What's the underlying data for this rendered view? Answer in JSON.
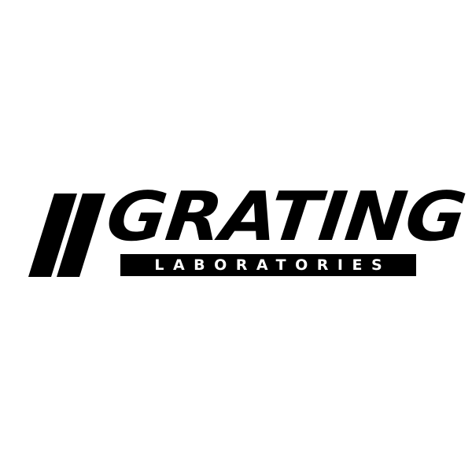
{
  "logo": {
    "name": "GRATING",
    "tagline": "LABORATORIES",
    "colors": {
      "ink": "#000000",
      "background": "#ffffff"
    },
    "icons": [
      "double-slash-stripes-icon"
    ]
  }
}
